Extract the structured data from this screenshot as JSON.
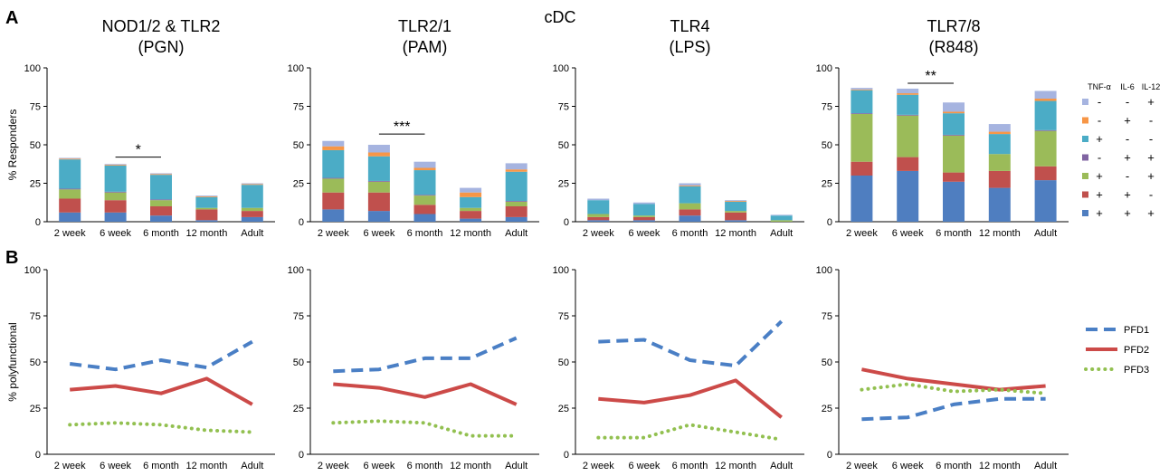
{
  "figure": {
    "center_title": "cDC",
    "panel_a_letter": "A",
    "panel_b_letter": "B"
  },
  "colors": {
    "c1": "#4f7ec0",
    "c2": "#c0504d",
    "c3": "#9bbb59",
    "c4": "#8064a2",
    "c5": "#4bacc6",
    "c6": "#f79646",
    "c7": "#a6b4e0",
    "pfd1": "#4a7fc5",
    "pfd2": "#cc4a48",
    "pfd3": "#92c050"
  },
  "legend_bar": {
    "headers": [
      "TNF-α",
      "IL-6",
      "IL-12"
    ],
    "rows": [
      {
        "color": "#a6b4e0",
        "signs": [
          "-",
          "-",
          "+"
        ]
      },
      {
        "color": "#f79646",
        "signs": [
          "-",
          "+",
          "-"
        ]
      },
      {
        "color": "#4bacc6",
        "signs": [
          "+",
          "-",
          "-"
        ]
      },
      {
        "color": "#8064a2",
        "signs": [
          "-",
          "+",
          "+"
        ]
      },
      {
        "color": "#9bbb59",
        "signs": [
          "+",
          "-",
          "+"
        ]
      },
      {
        "color": "#c0504d",
        "signs": [
          "+",
          "+",
          "-"
        ]
      },
      {
        "color": "#4f7ec0",
        "signs": [
          "+",
          "+",
          "+"
        ]
      }
    ]
  },
  "legend_line": [
    {
      "name": "PFD1",
      "color": "#4a7fc5",
      "dash": "dash"
    },
    {
      "name": "PFD2",
      "color": "#cc4a48",
      "dash": "solid"
    },
    {
      "name": "PFD3",
      "color": "#92c050",
      "dash": "dot"
    }
  ],
  "chart_data": [
    {
      "type": "bar",
      "stacked": true,
      "title": "NOD1/2 & TLR2\n(PGN)",
      "ylabel": "% Responders",
      "ylim": [
        0,
        100
      ],
      "yticks": [
        0,
        25,
        50,
        75,
        100
      ],
      "categories": [
        "2 week",
        "6 week",
        "6 month",
        "12 month",
        "Adult"
      ],
      "segments": [
        [
          6,
          9,
          6,
          0.5,
          19,
          0.5,
          0.5
        ],
        [
          6,
          8,
          5,
          0.5,
          17,
          0.5,
          0.5
        ],
        [
          4,
          6,
          4,
          0.5,
          16,
          0.5,
          0.5
        ],
        [
          1,
          7,
          1,
          0,
          7,
          0.5,
          0.5
        ],
        [
          3,
          4,
          2,
          0,
          15,
          0.5,
          0.5
        ]
      ],
      "significance": {
        "from": "6 week",
        "to": "6 month",
        "label": "*",
        "y": 42
      }
    },
    {
      "type": "bar",
      "stacked": true,
      "title": "TLR2/1\n(PAM)",
      "ylabel": "",
      "ylim": [
        0,
        100
      ],
      "yticks": [
        0,
        25,
        50,
        75,
        100
      ],
      "categories": [
        "2 week",
        "6 week",
        "6 month",
        "12 month",
        "Adult"
      ],
      "segments": [
        [
          8,
          11,
          9,
          0.5,
          18,
          2.5,
          3.5
        ],
        [
          7,
          12,
          7,
          0.5,
          16,
          2.5,
          5
        ],
        [
          5,
          6,
          6,
          0.5,
          16,
          1.5,
          4
        ],
        [
          2,
          5,
          2,
          0,
          7,
          3,
          3
        ],
        [
          3,
          7,
          3,
          0.5,
          19,
          1.5,
          4
        ]
      ],
      "significance": {
        "from": "6 week",
        "to": "6 month",
        "label": "***",
        "y": 57
      }
    },
    {
      "type": "bar",
      "stacked": true,
      "title": "TLR4\n(LPS)",
      "ylabel": "",
      "ylim": [
        0,
        100
      ],
      "yticks": [
        0,
        25,
        50,
        75,
        100
      ],
      "categories": [
        "2 week",
        "6 week",
        "6 month",
        "12 month",
        "Adult"
      ],
      "segments": [
        [
          1,
          2,
          2,
          0,
          9,
          0,
          1
        ],
        [
          1,
          2,
          1,
          0,
          7.5,
          0,
          1
        ],
        [
          4,
          4,
          4,
          0,
          11,
          0.5,
          1.5
        ],
        [
          1,
          5,
          1,
          0,
          6,
          0.5,
          0.5
        ],
        [
          0,
          0,
          1,
          0,
          3,
          0,
          0.5
        ]
      ],
      "significance": null
    },
    {
      "type": "bar",
      "stacked": true,
      "title": "TLR7/8\n(R848)",
      "ylabel": "",
      "ylim": [
        0,
        100
      ],
      "yticks": [
        0,
        25,
        50,
        75,
        100
      ],
      "categories": [
        "2 week",
        "6 week",
        "6 month",
        "12 month",
        "Adult"
      ],
      "segments": [
        [
          30,
          9,
          31,
          0.5,
          15,
          0.5,
          1
        ],
        [
          33,
          9,
          27,
          0.5,
          13,
          1,
          3
        ],
        [
          26,
          6,
          24,
          0.5,
          14,
          1,
          6
        ],
        [
          22,
          11,
          11,
          0,
          13,
          1.5,
          5
        ],
        [
          27,
          9,
          23,
          0.5,
          19,
          1.5,
          5
        ]
      ],
      "significance": {
        "from": "6 week",
        "to": "6 month",
        "label": "**",
        "y": 90
      }
    },
    {
      "type": "line",
      "title": "",
      "ylabel": "% polyfunctional",
      "ylim": [
        0,
        100
      ],
      "yticks": [
        0,
        25,
        50,
        75,
        100
      ],
      "categories": [
        "2 week",
        "6 week",
        "6 month",
        "12 month",
        "Adult"
      ],
      "series": [
        {
          "name": "PFD1",
          "values": [
            49,
            46,
            51,
            47,
            61
          ]
        },
        {
          "name": "PFD2",
          "values": [
            35,
            37,
            33,
            41,
            27
          ]
        },
        {
          "name": "PFD3",
          "values": [
            16,
            17,
            16,
            13,
            12
          ]
        }
      ]
    },
    {
      "type": "line",
      "title": "",
      "ylabel": "",
      "ylim": [
        0,
        100
      ],
      "yticks": [
        0,
        25,
        50,
        75,
        100
      ],
      "categories": [
        "2 week",
        "6 week",
        "6 month",
        "12 month",
        "Adult"
      ],
      "series": [
        {
          "name": "PFD1",
          "values": [
            45,
            46,
            52,
            52,
            63
          ]
        },
        {
          "name": "PFD2",
          "values": [
            38,
            36,
            31,
            38,
            27
          ]
        },
        {
          "name": "PFD3",
          "values": [
            17,
            18,
            17,
            10,
            10
          ]
        }
      ]
    },
    {
      "type": "line",
      "title": "",
      "ylabel": "",
      "ylim": [
        0,
        100
      ],
      "yticks": [
        0,
        25,
        50,
        75,
        100
      ],
      "categories": [
        "2 week",
        "6 week",
        "6 month",
        "12 month",
        "Adult"
      ],
      "series": [
        {
          "name": "PFD1",
          "values": [
            61,
            62,
            51,
            48,
            72
          ]
        },
        {
          "name": "PFD2",
          "values": [
            30,
            28,
            32,
            40,
            20
          ]
        },
        {
          "name": "PFD3",
          "values": [
            9,
            9,
            16,
            12,
            8
          ]
        }
      ]
    },
    {
      "type": "line",
      "title": "",
      "ylabel": "",
      "ylim": [
        0,
        100
      ],
      "yticks": [
        0,
        25,
        50,
        75,
        100
      ],
      "categories": [
        "2 week",
        "6 week",
        "6 month",
        "12 month",
        "Adult"
      ],
      "series": [
        {
          "name": "PFD1",
          "values": [
            19,
            20,
            27,
            30,
            30
          ]
        },
        {
          "name": "PFD2",
          "values": [
            46,
            41,
            38,
            35,
            37
          ]
        },
        {
          "name": "PFD3",
          "values": [
            35,
            38,
            34,
            35,
            33
          ]
        }
      ]
    }
  ]
}
